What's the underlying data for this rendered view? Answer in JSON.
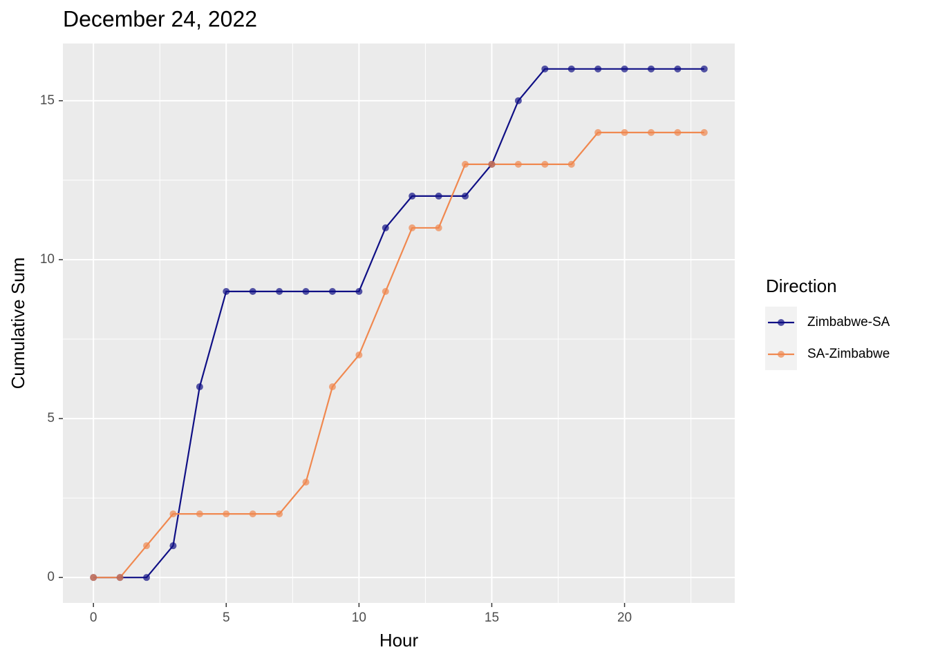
{
  "chart_data": {
    "type": "line",
    "title": "December 24, 2022",
    "x_label": "Hour",
    "y_label": "Cumulative Sum",
    "legend_title": "Direction",
    "x": [
      0,
      1,
      2,
      3,
      4,
      5,
      6,
      7,
      8,
      9,
      10,
      11,
      12,
      13,
      14,
      15,
      16,
      17,
      18,
      19,
      20,
      21,
      22,
      23
    ],
    "series": [
      {
        "name": "Zimbabwe-SA",
        "color": "#0f0f85",
        "values": [
          0,
          0,
          0,
          1,
          6,
          9,
          9,
          9,
          9,
          9,
          9,
          11,
          12,
          12,
          12,
          13,
          15,
          16,
          16,
          16,
          16,
          16,
          16,
          16
        ]
      },
      {
        "name": "SA-Zimbabwe",
        "color": "#f0884f",
        "values": [
          0,
          0,
          1,
          2,
          2,
          2,
          2,
          2,
          3,
          6,
          7,
          9,
          11,
          11,
          13,
          13,
          13,
          13,
          13,
          14,
          14,
          14,
          14,
          14
        ]
      }
    ],
    "xlim": [
      -1.15,
      24.15
    ],
    "xticks": [
      0,
      5,
      10,
      15,
      20
    ],
    "ylim": [
      -0.8,
      16.8
    ],
    "yticks": [
      0,
      5,
      10,
      15
    ],
    "grid": true,
    "legend": "right"
  }
}
